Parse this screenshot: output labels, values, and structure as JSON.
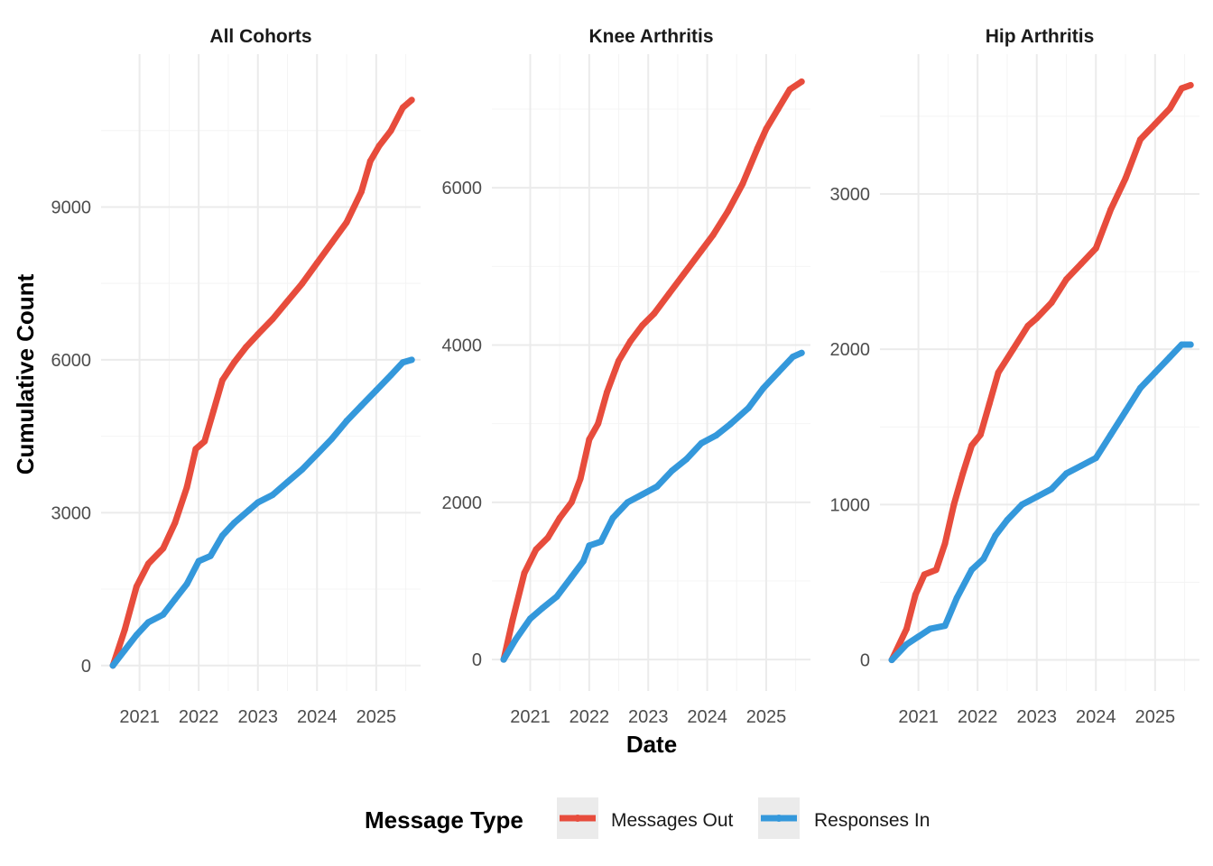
{
  "chart_data": {
    "type": "line",
    "xlabel": "Date",
    "ylabel": "Cumulative Count",
    "legend": {
      "title": "Message Type",
      "placement": "bottom",
      "entries": [
        {
          "name": "Messages Out",
          "color": "#E74C3C"
        },
        {
          "name": "Responses In",
          "color": "#3498DB"
        }
      ]
    },
    "x_ticks": [
      "2021",
      "2022",
      "2023",
      "2024",
      "2025"
    ],
    "xlim": [
      2020.35,
      2025.75
    ],
    "grid": true,
    "panels": [
      {
        "title": "All Cohorts",
        "ylim": [
          -500,
          12000
        ],
        "y_ticks": [
          0,
          3000,
          6000,
          9000
        ],
        "series": [
          {
            "name": "Messages Out",
            "color": "#E74C3C",
            "x": [
              2020.55,
              2020.75,
              2020.95,
              2021.15,
              2021.4,
              2021.6,
              2021.8,
              2021.95,
              2022.1,
              2022.25,
              2022.4,
              2022.6,
              2022.8,
              2023.0,
              2023.25,
              2023.5,
              2023.75,
              2024.0,
              2024.25,
              2024.5,
              2024.75,
              2024.9,
              2025.05,
              2025.25,
              2025.45,
              2025.6
            ],
            "y": [
              0,
              700,
              1550,
              2000,
              2300,
              2800,
              3500,
              4250,
              4400,
              5000,
              5600,
              5950,
              6250,
              6500,
              6800,
              7150,
              7500,
              7900,
              8300,
              8700,
              9300,
              9900,
              10200,
              10500,
              10950,
              11100
            ]
          },
          {
            "name": "Responses In",
            "color": "#3498DB",
            "x": [
              2020.55,
              2020.75,
              2020.95,
              2021.15,
              2021.4,
              2021.6,
              2021.8,
              2022.0,
              2022.2,
              2022.4,
              2022.6,
              2022.85,
              2023.0,
              2023.25,
              2023.5,
              2023.75,
              2024.0,
              2024.25,
              2024.5,
              2024.75,
              2025.0,
              2025.25,
              2025.45,
              2025.6
            ],
            "y": [
              0,
              300,
              600,
              850,
              1000,
              1300,
              1600,
              2050,
              2150,
              2550,
              2800,
              3050,
              3200,
              3350,
              3600,
              3850,
              4150,
              4450,
              4800,
              5100,
              5400,
              5700,
              5950,
              6000
            ]
          }
        ]
      },
      {
        "title": "Knee Arthritis",
        "ylim": [
          -400,
          7700
        ],
        "y_ticks": [
          0,
          2000,
          4000,
          6000
        ],
        "series": [
          {
            "name": "Messages Out",
            "color": "#E74C3C",
            "x": [
              2020.55,
              2020.7,
              2020.9,
              2021.1,
              2021.3,
              2021.5,
              2021.7,
              2021.85,
              2022.0,
              2022.15,
              2022.3,
              2022.5,
              2022.7,
              2022.9,
              2023.1,
              2023.35,
              2023.6,
              2023.9,
              2024.1,
              2024.35,
              2024.6,
              2024.85,
              2025.0,
              2025.2,
              2025.4,
              2025.6
            ],
            "y": [
              0,
              500,
              1100,
              1400,
              1550,
              1800,
              2000,
              2300,
              2800,
              3000,
              3400,
              3800,
              4050,
              4250,
              4400,
              4650,
              4900,
              5200,
              5400,
              5700,
              6050,
              6500,
              6750,
              7000,
              7250,
              7350
            ]
          },
          {
            "name": "Responses In",
            "color": "#3498DB",
            "x": [
              2020.55,
              2020.75,
              2021.0,
              2021.2,
              2021.45,
              2021.7,
              2021.9,
              2022.0,
              2022.2,
              2022.4,
              2022.65,
              2022.9,
              2023.15,
              2023.4,
              2023.65,
              2023.9,
              2024.15,
              2024.4,
              2024.7,
              2024.95,
              2025.2,
              2025.45,
              2025.6
            ],
            "y": [
              0,
              250,
              520,
              650,
              800,
              1050,
              1250,
              1450,
              1500,
              1800,
              2000,
              2100,
              2200,
              2400,
              2550,
              2750,
              2850,
              3000,
              3200,
              3450,
              3650,
              3850,
              3900
            ]
          }
        ]
      },
      {
        "title": "Hip Arthritis",
        "ylim": [
          -200,
          3900
        ],
        "y_ticks": [
          0,
          1000,
          2000,
          3000
        ],
        "series": [
          {
            "name": "Messages Out",
            "color": "#E74C3C",
            "x": [
              2020.55,
              2020.8,
              2020.95,
              2021.1,
              2021.3,
              2021.45,
              2021.6,
              2021.75,
              2021.9,
              2022.05,
              2022.2,
              2022.35,
              2022.6,
              2022.85,
              2023.0,
              2023.25,
              2023.5,
              2023.75,
              2024.0,
              2024.25,
              2024.5,
              2024.75,
              2025.0,
              2025.25,
              2025.45,
              2025.6
            ],
            "y": [
              0,
              200,
              420,
              550,
              580,
              750,
              1000,
              1200,
              1380,
              1450,
              1650,
              1850,
              2000,
              2150,
              2200,
              2300,
              2450,
              2550,
              2650,
              2900,
              3100,
              3350,
              3450,
              3550,
              3680,
              3700
            ]
          },
          {
            "name": "Responses In",
            "color": "#3498DB",
            "x": [
              2020.55,
              2020.8,
              2021.0,
              2021.2,
              2021.45,
              2021.65,
              2021.9,
              2022.1,
              2022.3,
              2022.5,
              2022.75,
              2023.0,
              2023.25,
              2023.5,
              2023.75,
              2024.0,
              2024.25,
              2024.5,
              2024.75,
              2025.0,
              2025.25,
              2025.45,
              2025.6
            ],
            "y": [
              0,
              100,
              150,
              200,
              220,
              400,
              580,
              650,
              800,
              900,
              1000,
              1050,
              1100,
              1200,
              1250,
              1300,
              1450,
              1600,
              1750,
              1850,
              1950,
              2030,
              2030
            ]
          }
        ]
      }
    ]
  }
}
